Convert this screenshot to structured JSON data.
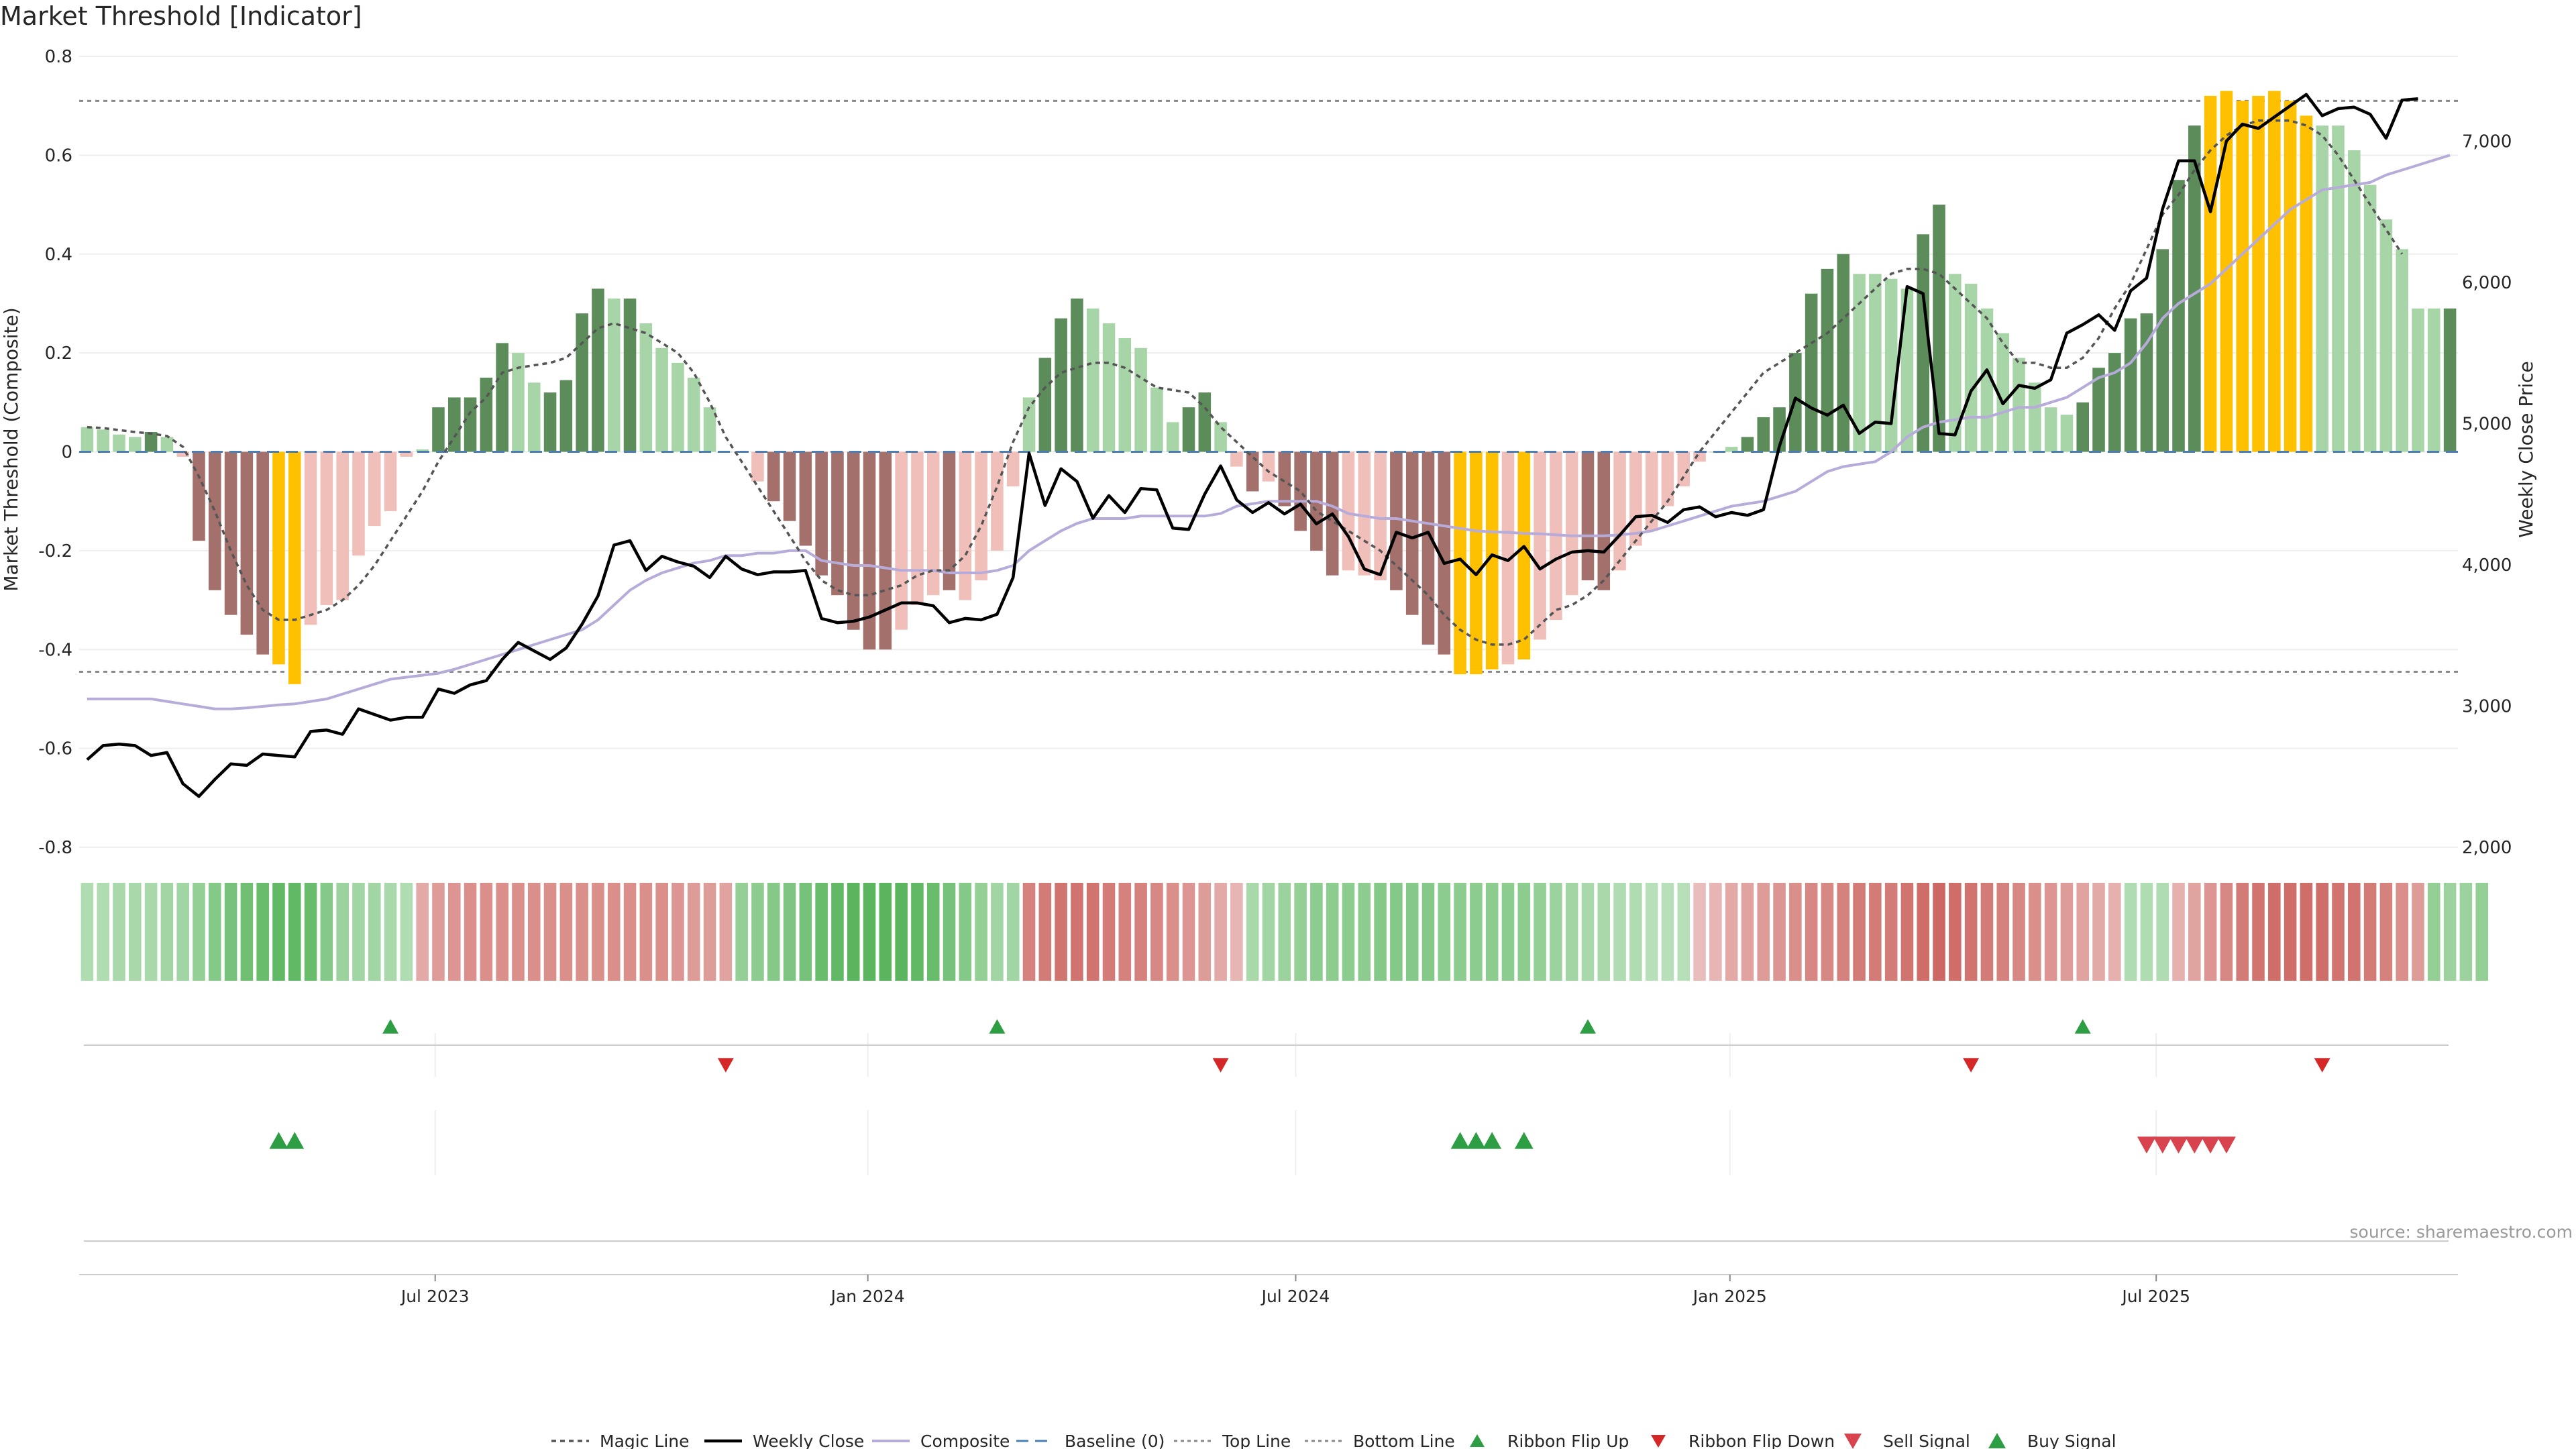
{
  "chart_data": {
    "type": "bar",
    "title": "Market Threshold [Indicator]",
    "ylabel": "Market Threshold (Composite)",
    "ylabel_right": "Weekly Close Price",
    "ylim": [
      -0.8,
      0.8
    ],
    "ylim_right": [
      2000,
      7600
    ],
    "yticks": [
      -0.8,
      -0.6,
      -0.4,
      -0.2,
      0,
      0.2,
      0.4,
      0.6,
      0.8
    ],
    "yticks_right": [
      2000,
      3000,
      4000,
      5000,
      6000,
      7000
    ],
    "x_ticks": [
      "Jul 2023",
      "Jan 2024",
      "Jul 2024",
      "Jan 2025",
      "Jul 2025"
    ],
    "source": "source: sharemaestro.com",
    "top_line": 0.71,
    "bottom_line": -0.445,
    "baseline": 0,
    "colors": {
      "bull_strong": "#5b8c5a",
      "bull_weak": "#a8d5a8",
      "bear_strong": "#a3706c",
      "bear_weak": "#f0bfba",
      "extreme": "#ffc000",
      "weekly_close": "#000000",
      "composite": "#b7abd9",
      "magic_line": "#555555",
      "ribbon_up": "#2e9e44",
      "ribbon_down": "#d62728",
      "sell_signal": "#d9434e",
      "buy_signal": "#2e9e44"
    },
    "histogram": [
      0.05,
      0.045,
      0.035,
      0.03,
      0.04,
      0.03,
      -0.01,
      -0.18,
      -0.28,
      -0.33,
      -0.37,
      -0.41,
      -0.43,
      -0.47,
      -0.35,
      -0.31,
      -0.3,
      -0.21,
      -0.15,
      -0.12,
      -0.01,
      0.005,
      0.09,
      0.11,
      0.11,
      0.15,
      0.22,
      0.2,
      0.14,
      0.12,
      0.145,
      0.28,
      0.33,
      0.31,
      0.31,
      0.26,
      0.21,
      0.18,
      0.15,
      0.09,
      0,
      0,
      -0.06,
      -0.1,
      -0.14,
      -0.19,
      -0.25,
      -0.29,
      -0.36,
      -0.4,
      -0.4,
      -0.36,
      -0.31,
      -0.29,
      -0.28,
      -0.3,
      -0.26,
      -0.2,
      -0.07,
      0.11,
      0.19,
      0.27,
      0.31,
      0.29,
      0.26,
      0.23,
      0.21,
      0.13,
      0.06,
      0.09,
      0.12,
      0.06,
      -0.03,
      -0.08,
      -0.06,
      -0.11,
      -0.16,
      -0.2,
      -0.25,
      -0.24,
      -0.25,
      -0.26,
      -0.28,
      -0.33,
      -0.39,
      -0.41,
      -0.45,
      -0.45,
      -0.44,
      -0.43,
      -0.42,
      -0.38,
      -0.34,
      -0.29,
      -0.26,
      -0.28,
      -0.24,
      -0.19,
      -0.16,
      -0.11,
      -0.07,
      -0.02,
      0,
      0.01,
      0.03,
      0.07,
      0.09,
      0.2,
      0.32,
      0.37,
      0.4,
      0.36,
      0.36,
      0.35,
      0.33,
      0.44,
      0.5,
      0.36,
      0.34,
      0.29,
      0.24,
      0.19,
      0.14,
      0.09,
      0.075,
      0.1,
      0.17,
      0.2,
      0.27,
      0.28,
      0.41,
      0.55,
      0.66,
      0.72,
      0.73,
      0.71,
      0.72,
      0.73,
      0.71,
      0.68,
      0.66,
      0.66,
      0.61,
      0.54,
      0.47,
      0.41,
      0.29,
      0.29,
      0.29
    ],
    "hist_categories": [
      "bull_weak",
      "bull_weak",
      "bull_weak",
      "bull_weak",
      "bull_strong",
      "bull_weak",
      "bear_weak",
      "bear_strong",
      "bear_strong",
      "bear_strong",
      "bear_strong",
      "bear_strong",
      "extreme",
      "extreme",
      "bear_weak",
      "bear_weak",
      "bear_weak",
      "bear_weak",
      "bear_weak",
      "bear_weak",
      "bear_weak",
      "bull_weak",
      "bull_strong",
      "bull_strong",
      "bull_strong",
      "bull_strong",
      "bull_strong",
      "bull_weak",
      "bull_weak",
      "bull_strong",
      "bull_strong",
      "bull_strong",
      "bull_strong",
      "bull_weak",
      "bull_strong",
      "bull_weak",
      "bull_weak",
      "bull_weak",
      "bull_weak",
      "bull_weak",
      "bull_weak",
      "bull_weak",
      "bear_weak",
      "bear_strong",
      "bear_strong",
      "bear_strong",
      "bear_strong",
      "bear_strong",
      "bear_strong",
      "bear_strong",
      "bear_strong",
      "bear_weak",
      "bear_weak",
      "bear_weak",
      "bear_strong",
      "bear_weak",
      "bear_weak",
      "bear_weak",
      "bear_weak",
      "bull_weak",
      "bull_strong",
      "bull_strong",
      "bull_strong",
      "bull_weak",
      "bull_weak",
      "bull_weak",
      "bull_weak",
      "bull_weak",
      "bull_weak",
      "bull_strong",
      "bull_strong",
      "bull_weak",
      "bear_weak",
      "bear_strong",
      "bear_weak",
      "bear_strong",
      "bear_strong",
      "bear_strong",
      "bear_strong",
      "bear_weak",
      "bear_weak",
      "bear_weak",
      "bear_strong",
      "bear_strong",
      "bear_strong",
      "bear_strong",
      "extreme",
      "extreme",
      "extreme",
      "bear_weak",
      "extreme",
      "bear_weak",
      "bear_weak",
      "bear_weak",
      "bear_strong",
      "bear_strong",
      "bear_weak",
      "bear_weak",
      "bear_weak",
      "bear_weak",
      "bear_weak",
      "bear_weak",
      "bull_weak",
      "bull_weak",
      "bull_strong",
      "bull_strong",
      "bull_strong",
      "bull_strong",
      "bull_strong",
      "bull_strong",
      "bull_strong",
      "bull_weak",
      "bull_weak",
      "bull_weak",
      "bull_weak",
      "bull_strong",
      "bull_strong",
      "bull_weak",
      "bull_weak",
      "bull_weak",
      "bull_weak",
      "bull_weak",
      "bull_weak",
      "bull_weak",
      "bull_weak",
      "bull_strong",
      "bull_strong",
      "bull_strong",
      "bull_strong",
      "bull_strong",
      "bull_strong",
      "bull_strong",
      "bull_strong",
      "extreme",
      "extreme",
      "extreme",
      "extreme",
      "extreme",
      "extreme",
      "extreme",
      "bull_weak",
      "bull_weak",
      "bull_weak",
      "bull_weak",
      "bull_weak",
      "bull_weak",
      "bull_weak",
      "bull_weak",
      "bull_strong",
      "bull_weak"
    ],
    "weekly_close": [
      2620,
      2720,
      2730,
      2720,
      2650,
      2670,
      2450,
      2360,
      2480,
      2590,
      2580,
      2660,
      2650,
      2640,
      2820,
      2830,
      2800,
      2980,
      2940,
      2900,
      2920,
      2920,
      3120,
      3090,
      3150,
      3180,
      3330,
      3450,
      3390,
      3330,
      3410,
      3580,
      3780,
      4140,
      4170,
      3960,
      4060,
      4020,
      3990,
      3910,
      4060,
      3970,
      3930,
      3950,
      3950,
      3960,
      3620,
      3590,
      3600,
      3630,
      3680,
      3730,
      3730,
      3710,
      3590,
      3620,
      3610,
      3650,
      3910,
      4790,
      4420,
      4680,
      4590,
      4330,
      4490,
      4370,
      4540,
      4530,
      4260,
      4250,
      4500,
      4700,
      4460,
      4370,
      4440,
      4360,
      4430,
      4290,
      4360,
      4200,
      3970,
      3930,
      4230,
      4190,
      4230,
      4010,
      4040,
      3930,
      4070,
      4030,
      4130,
      3970,
      4040,
      4090,
      4100,
      4090,
      4210,
      4340,
      4350,
      4300,
      4390,
      4410,
      4340,
      4370,
      4350,
      4390,
      4840,
      5180,
      5110,
      5060,
      5130,
      4930,
      5010,
      5000,
      5970,
      5920,
      4930,
      4920,
      5230,
      5380,
      5140,
      5270,
      5250,
      5310,
      5640,
      5700,
      5770,
      5660,
      5940,
      6030,
      6520,
      6860,
      6860,
      6500,
      7000,
      7120,
      7090,
      7170,
      7250,
      7330,
      7180,
      7230,
      7240,
      7190,
      7020,
      7290,
      7300
    ],
    "composite": [
      -0.5,
      -0.5,
      -0.5,
      -0.5,
      -0.5,
      -0.505,
      -0.51,
      -0.515,
      -0.52,
      -0.52,
      -0.518,
      -0.515,
      -0.512,
      -0.51,
      -0.505,
      -0.5,
      -0.49,
      -0.48,
      -0.47,
      -0.46,
      -0.456,
      -0.452,
      -0.448,
      -0.44,
      -0.43,
      -0.42,
      -0.41,
      -0.4,
      -0.39,
      -0.38,
      -0.37,
      -0.36,
      -0.34,
      -0.31,
      -0.28,
      -0.26,
      -0.245,
      -0.235,
      -0.225,
      -0.22,
      -0.21,
      -0.21,
      -0.205,
      -0.205,
      -0.2,
      -0.2,
      -0.22,
      -0.225,
      -0.23,
      -0.23,
      -0.235,
      -0.24,
      -0.24,
      -0.24,
      -0.245,
      -0.245,
      -0.245,
      -0.24,
      -0.23,
      -0.2,
      -0.18,
      -0.16,
      -0.145,
      -0.135,
      -0.135,
      -0.135,
      -0.13,
      -0.13,
      -0.13,
      -0.13,
      -0.13,
      -0.125,
      -0.11,
      -0.105,
      -0.1,
      -0.1,
      -0.1,
      -0.1,
      -0.11,
      -0.125,
      -0.13,
      -0.135,
      -0.135,
      -0.14,
      -0.145,
      -0.15,
      -0.155,
      -0.16,
      -0.162,
      -0.163,
      -0.165,
      -0.166,
      -0.168,
      -0.17,
      -0.17,
      -0.17,
      -0.168,
      -0.165,
      -0.16,
      -0.15,
      -0.14,
      -0.13,
      -0.12,
      -0.11,
      -0.105,
      -0.1,
      -0.09,
      -0.08,
      -0.06,
      -0.04,
      -0.03,
      -0.025,
      -0.02,
      0,
      0.03,
      0.05,
      0.06,
      0.065,
      0.07,
      0.07,
      0.08,
      0.09,
      0.09,
      0.1,
      0.11,
      0.13,
      0.15,
      0.16,
      0.18,
      0.22,
      0.27,
      0.3,
      0.32,
      0.34,
      0.37,
      0.4,
      0.43,
      0.46,
      0.49,
      0.51,
      0.53,
      0.535,
      0.54,
      0.545,
      0.56,
      0.57,
      0.58,
      0.59,
      0.6
    ],
    "magic_line": [
      0.05,
      0.048,
      0.044,
      0.04,
      0.037,
      0.032,
      0.01,
      -0.05,
      -0.12,
      -0.2,
      -0.27,
      -0.32,
      -0.34,
      -0.34,
      -0.33,
      -0.32,
      -0.3,
      -0.27,
      -0.23,
      -0.18,
      -0.13,
      -0.08,
      -0.02,
      0.03,
      0.08,
      0.11,
      0.16,
      0.17,
      0.175,
      0.18,
      0.19,
      0.22,
      0.25,
      0.26,
      0.25,
      0.24,
      0.22,
      0.2,
      0.16,
      0.1,
      0.03,
      -0.02,
      -0.07,
      -0.12,
      -0.17,
      -0.22,
      -0.26,
      -0.28,
      -0.29,
      -0.29,
      -0.28,
      -0.27,
      -0.25,
      -0.24,
      -0.24,
      -0.21,
      -0.15,
      -0.07,
      0.02,
      0.09,
      0.13,
      0.16,
      0.17,
      0.18,
      0.18,
      0.17,
      0.15,
      0.13,
      0.125,
      0.12,
      0.09,
      0.05,
      0.02,
      -0.01,
      -0.04,
      -0.06,
      -0.08,
      -0.12,
      -0.14,
      -0.16,
      -0.18,
      -0.2,
      -0.23,
      -0.26,
      -0.29,
      -0.33,
      -0.36,
      -0.38,
      -0.39,
      -0.39,
      -0.38,
      -0.35,
      -0.32,
      -0.31,
      -0.29,
      -0.26,
      -0.22,
      -0.18,
      -0.14,
      -0.1,
      -0.05,
      0.0,
      0.04,
      0.08,
      0.12,
      0.16,
      0.18,
      0.2,
      0.22,
      0.24,
      0.27,
      0.3,
      0.33,
      0.36,
      0.37,
      0.37,
      0.36,
      0.33,
      0.3,
      0.27,
      0.22,
      0.18,
      0.18,
      0.17,
      0.17,
      0.19,
      0.23,
      0.29,
      0.34,
      0.41,
      0.48,
      0.52,
      0.57,
      0.61,
      0.64,
      0.66,
      0.67,
      0.67,
      0.67,
      0.66,
      0.64,
      0.6,
      0.55,
      0.5,
      0.45,
      0.4
    ],
    "ribbon_levels": [
      0.3,
      0.3,
      0.35,
      0.35,
      0.35,
      0.4,
      0.4,
      0.5,
      0.6,
      0.7,
      0.75,
      0.8,
      0.85,
      0.85,
      0.8,
      0.6,
      0.45,
      0.4,
      0.4,
      0.35,
      0.3,
      -0.4,
      -0.5,
      -0.55,
      -0.6,
      -0.6,
      -0.6,
      -0.6,
      -0.6,
      -0.6,
      -0.6,
      -0.6,
      -0.6,
      -0.6,
      -0.6,
      -0.6,
      -0.6,
      -0.55,
      -0.5,
      -0.5,
      -0.45,
      0.5,
      0.55,
      0.6,
      0.65,
      0.7,
      0.8,
      0.85,
      0.9,
      0.9,
      0.9,
      0.9,
      0.85,
      0.8,
      0.7,
      0.6,
      0.5,
      0.4,
      0.4,
      -0.7,
      -0.75,
      -0.8,
      -0.8,
      -0.8,
      -0.75,
      -0.7,
      -0.7,
      -0.65,
      -0.6,
      -0.55,
      -0.5,
      -0.4,
      -0.3,
      0.35,
      0.4,
      0.45,
      0.5,
      0.55,
      0.55,
      0.55,
      0.55,
      0.6,
      0.6,
      0.6,
      0.6,
      0.55,
      0.55,
      0.55,
      0.55,
      0.55,
      0.55,
      0.5,
      0.45,
      0.4,
      0.35,
      0.35,
      0.3,
      0.3,
      0.25,
      0.25,
      0.25,
      -0.25,
      -0.3,
      -0.4,
      -0.45,
      -0.5,
      -0.55,
      -0.6,
      -0.65,
      -0.65,
      -0.7,
      -0.75,
      -0.75,
      -0.75,
      -0.8,
      -0.85,
      -0.9,
      -0.85,
      -0.8,
      -0.75,
      -0.7,
      -0.65,
      -0.6,
      -0.55,
      -0.5,
      -0.45,
      -0.4,
      -0.35,
      0.3,
      0.3,
      0.3,
      -0.35,
      -0.45,
      -0.55,
      -0.65,
      -0.75,
      -0.8,
      -0.85,
      -0.85,
      -0.85,
      -0.85,
      -0.8,
      -0.8,
      -0.75,
      -0.7,
      -0.6,
      -0.5,
      0.5,
      0.45,
      0.45,
      0.5
    ],
    "ribbon_flip_up_idx": [
      19,
      57,
      94,
      125
    ],
    "ribbon_flip_down_idx": [
      40,
      71,
      118,
      140
    ],
    "buy_signal_idx": [
      12,
      13,
      86,
      87,
      88,
      90
    ],
    "sell_signal_idx": [
      129,
      130,
      131,
      132,
      133,
      134
    ],
    "legend": [
      {
        "key": "magic",
        "label": "Magic Line"
      },
      {
        "key": "weekly",
        "label": "Weekly Close"
      },
      {
        "key": "composite",
        "label": "Composite"
      },
      {
        "key": "baseline",
        "label": "Baseline (0)"
      },
      {
        "key": "top",
        "label": "Top Line"
      },
      {
        "key": "bottom",
        "label": "Bottom Line"
      },
      {
        "key": "flipup",
        "label": "Ribbon Flip Up"
      },
      {
        "key": "flipdown",
        "label": "Ribbon Flip Down"
      },
      {
        "key": "sell",
        "label": "Sell Signal"
      },
      {
        "key": "buy",
        "label": "Buy Signal"
      }
    ]
  }
}
